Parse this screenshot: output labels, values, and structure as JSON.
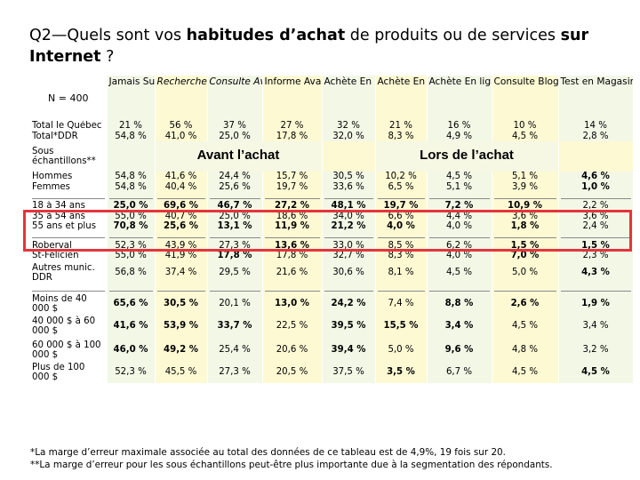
{
  "title": {
    "p1": "Q2—Quels sont vos ",
    "b1": "habitudes d’achat",
    "p2": " de produits ou de services ",
    "b2": "sur Internet",
    "p3": " ?"
  },
  "n_label": "N = 400",
  "headers": [
    "Jamais Sur Internet",
    "Recherche Avant achat",
    "Consulte Avant achat",
    "Informe Avant achat",
    "Achète En ligne Canada",
    "Achète En ligne E-U",
    "Achète En ligne Extérieur",
    "Consulte Blogues",
    "Test en Magasin Avant achat"
  ],
  "header_values": [
    [
      "21 %",
      "56 %",
      "37 %",
      "27 %",
      "32 %",
      "21 %",
      "16 %",
      "10 %",
      "14 %"
    ],
    [
      "54,8 %",
      "41,0 %",
      "25,0 %",
      "17,8 %",
      "32,0 %",
      "8,3 %",
      "4,9 %",
      "4,5 %",
      "2,8 %"
    ]
  ],
  "captions": {
    "avant": "Avant l’achat",
    "lors": "Lors de l’achat"
  },
  "row_labels": {
    "total": "Total le Québec",
    "ddr": "Total*DDR",
    "sous": "Sous échantillons**",
    "hommes": "Hommes",
    "femmes": "Femmes",
    "a18": "18 à 34 ans",
    "a35": "35 à 54 ans",
    "a55": "55 ans et plus",
    "roberval": "Roberval",
    "stfelicien": "St-Félicien",
    "autres": "Autres munic. DDR",
    "moins40": "Moins de 40 000 $",
    "r40_60": "40 000 $ à 60 000 $",
    "r60_100": "60 000 $ à 100 000 $",
    "plus100": "Plus de 100 000 $"
  },
  "rows": {
    "hommes": [
      "54,8 %",
      "41,6 %",
      "24,4 %",
      "15,7 %",
      "30,5 %",
      "10,2 %",
      "4,5 %",
      "5,1 %",
      "4,6 %"
    ],
    "femmes": [
      "54,8 %",
      "40,4 %",
      "25,6 %",
      "19,7 %",
      "33,6 %",
      "6,5 %",
      "5,1 %",
      "3,9 %",
      "1,0 %"
    ],
    "a18": [
      "25,0 %",
      "69,6 %",
      "46,7 %",
      "27,2 %",
      "48,1 %",
      "19,7 %",
      "7,2 %",
      "10,9 %",
      "2,2 %"
    ],
    "a35": [
      "55,0 %",
      "40,7 %",
      "25,0 %",
      "18,6 %",
      "34,0 %",
      "6,6 %",
      "4,4 %",
      "3,6 %",
      "3,6 %"
    ],
    "a55": [
      "70,8 %",
      "25,6 %",
      "13,1 %",
      "11,9 %",
      "21,2 %",
      "4,0 %",
      "4,0 %",
      "1,8 %",
      "2,4 %"
    ],
    "roberval": [
      "52,3 %",
      "43,9 %",
      "27,3 %",
      "13,6 %",
      "33,0 %",
      "8,5 %",
      "6,2 %",
      "1,5 %",
      "1,5 %"
    ],
    "stfelicien": [
      "55,0 %",
      "41,9 %",
      "17,8 %",
      "17,8 %",
      "32,7 %",
      "8,3 %",
      "4,0 %",
      "7,0 %",
      "2,3 %"
    ],
    "autres": [
      "56,8 %",
      "37,4 %",
      "29,5 %",
      "21,6 %",
      "30,6 %",
      "8,1 %",
      "4,5 %",
      "5,0 %",
      "4,3 %"
    ],
    "moins40": [
      "65,6 %",
      "30,5 %",
      "20,1 %",
      "13,0 %",
      "24,2 %",
      "7,4 %",
      "8,8 %",
      "2,6 %",
      "1,9 %"
    ],
    "r40_60": [
      "41,6 %",
      "53,9 %",
      "33,7 %",
      "22,5 %",
      "39,5 %",
      "15,5 %",
      "3,4 %",
      "4,5 %",
      "3,4 %"
    ],
    "r60_100": [
      "46,0 %",
      "49,2 %",
      "25,4 %",
      "20,6 %",
      "39,4 %",
      "5,0 %",
      "9,6 %",
      "4,8 %",
      "3,2 %"
    ],
    "plus100": [
      "52,3 %",
      "45,5 %",
      "27,3 %",
      "20,5 %",
      "37,5 %",
      "3,5 %",
      "6,7 %",
      "4,5 %",
      "4,5 %"
    ]
  },
  "footnotes": [
    "*La marge d’erreur maximale associée au total des données de ce tableau est de 4,9%, 19 fois sur 20.",
    "**La marge d’erreur pour les sous échantillons peut-être plus importante due à la segmentation des répondants."
  ]
}
